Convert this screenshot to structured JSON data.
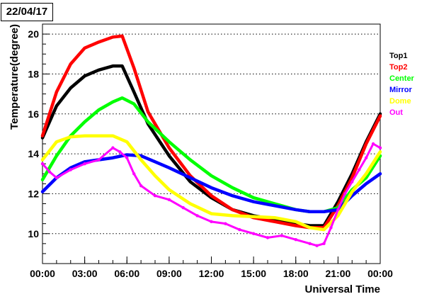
{
  "date_label": "22/04/17",
  "chart_data": {
    "type": "scatter",
    "title": "",
    "xlabel": "Universal Time",
    "ylabel": "Temperature(degree)",
    "xlim": [
      "00:00",
      "24:00"
    ],
    "ylim": [
      8.5,
      20.5
    ],
    "x_ticks": [
      "00:00",
      "03:00",
      "06:00",
      "09:00",
      "12:00",
      "15:00",
      "18:00",
      "21:00",
      "00:00"
    ],
    "y_ticks": [
      10,
      12,
      14,
      16,
      18,
      20
    ],
    "grid": {
      "horizontal": true,
      "vertical": false
    },
    "legend_position": "right",
    "series": [
      {
        "name": "Top1",
        "color": "#000000",
        "x": [
          "00:00",
          "01:00",
          "02:00",
          "03:00",
          "04:00",
          "05:00",
          "05:40",
          "06:30",
          "07:30",
          "09:00",
          "10:30",
          "12:00",
          "13:30",
          "15:00",
          "16:30",
          "18:00",
          "19:00",
          "20:00",
          "21:00",
          "22:00",
          "23:00",
          "24:00"
        ],
        "y": [
          14.8,
          16.4,
          17.3,
          17.9,
          18.2,
          18.4,
          18.4,
          17.1,
          15.5,
          13.9,
          12.6,
          11.8,
          11.2,
          10.9,
          10.7,
          10.5,
          10.4,
          10.4,
          11.6,
          13.0,
          14.6,
          16.0
        ]
      },
      {
        "name": "Top2",
        "color": "#ff0000",
        "x": [
          "00:00",
          "01:00",
          "02:00",
          "03:00",
          "04:00",
          "05:00",
          "05:40",
          "06:30",
          "07:30",
          "09:00",
          "10:30",
          "12:00",
          "13:30",
          "15:00",
          "16:30",
          "18:00",
          "19:00",
          "20:00",
          "21:00",
          "22:00",
          "23:00",
          "24:00"
        ],
        "y": [
          14.9,
          17.1,
          18.5,
          19.3,
          19.6,
          19.85,
          19.9,
          18.3,
          16.1,
          14.3,
          12.9,
          11.9,
          11.2,
          10.8,
          10.6,
          10.4,
          10.3,
          10.3,
          11.4,
          12.8,
          14.5,
          15.9
        ]
      },
      {
        "name": "Center",
        "color": "#00ff00",
        "x": [
          "00:00",
          "01:00",
          "02:00",
          "03:00",
          "04:00",
          "05:00",
          "05:40",
          "06:30",
          "07:30",
          "09:00",
          "10:30",
          "12:00",
          "13:30",
          "15:00",
          "16:30",
          "18:00",
          "19:00",
          "20:00",
          "21:00",
          "22:00",
          "23:00",
          "24:00"
        ],
        "y": [
          12.7,
          13.9,
          14.9,
          15.6,
          16.2,
          16.6,
          16.8,
          16.5,
          15.6,
          14.6,
          13.7,
          12.9,
          12.3,
          11.8,
          11.5,
          11.2,
          11.1,
          11.1,
          11.3,
          12.2,
          12.8,
          13.9
        ]
      },
      {
        "name": "Mirror",
        "color": "#0000ff",
        "x": [
          "00:00",
          "01:00",
          "02:00",
          "03:00",
          "04:00",
          "05:00",
          "06:00",
          "07:00",
          "08:00",
          "09:00",
          "10:30",
          "12:00",
          "13:30",
          "15:00",
          "16:30",
          "18:00",
          "19:00",
          "20:00",
          "21:00",
          "22:00",
          "23:00",
          "24:00"
        ],
        "y": [
          12.1,
          12.8,
          13.3,
          13.6,
          13.7,
          13.8,
          13.95,
          13.9,
          13.6,
          13.3,
          12.8,
          12.3,
          11.9,
          11.6,
          11.4,
          11.2,
          11.1,
          11.1,
          11.2,
          11.9,
          12.5,
          13.0
        ]
      },
      {
        "name": "Dome",
        "color": "#ffff00",
        "x": [
          "00:00",
          "01:00",
          "02:00",
          "03:00",
          "04:00",
          "05:00",
          "06:00",
          "07:00",
          "08:00",
          "09:00",
          "10:30",
          "12:00",
          "13:30",
          "15:00",
          "16:30",
          "18:00",
          "19:00",
          "20:00",
          "21:00",
          "22:00",
          "23:00",
          "24:00"
        ],
        "y": [
          13.7,
          14.6,
          14.85,
          14.9,
          14.9,
          14.9,
          14.6,
          13.7,
          12.9,
          12.2,
          11.5,
          11.0,
          10.9,
          10.85,
          10.8,
          10.6,
          10.3,
          10.2,
          10.9,
          12.1,
          13.0,
          14.1
        ]
      },
      {
        "name": "Out",
        "color": "#ff00ff",
        "x": [
          "00:00",
          "00:30",
          "01:00",
          "02:00",
          "03:00",
          "04:00",
          "05:00",
          "05:30",
          "06:00",
          "06:30",
          "07:00",
          "08:00",
          "09:00",
          "10:00",
          "11:00",
          "12:00",
          "13:00",
          "14:00",
          "15:00",
          "16:00",
          "17:00",
          "18:00",
          "19:00",
          "19:30",
          "20:00",
          "20:30",
          "21:00",
          "21:30",
          "22:00",
          "22:30",
          "23:00",
          "23:30",
          "24:00"
        ],
        "y": [
          13.5,
          13.1,
          12.8,
          13.2,
          13.5,
          13.7,
          14.3,
          14.1,
          13.8,
          13.0,
          12.4,
          11.9,
          11.7,
          11.3,
          10.9,
          10.6,
          10.5,
          10.2,
          10.0,
          9.8,
          9.9,
          9.7,
          9.5,
          9.4,
          9.5,
          10.3,
          11.2,
          12.0,
          12.6,
          13.2,
          13.8,
          14.5,
          14.3
        ]
      }
    ]
  }
}
